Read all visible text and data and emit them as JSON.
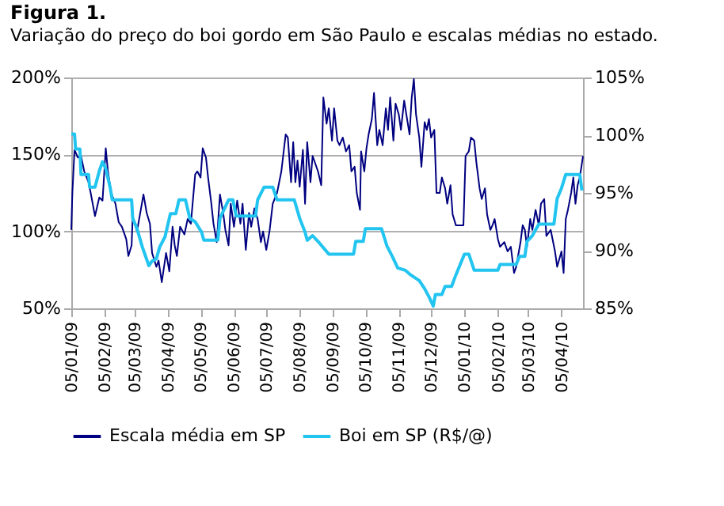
{
  "chart_data": {
    "type": "line",
    "title": "Figura 1.",
    "subtitle": "Variação do preço do boi gordo em São Paulo e escalas médias no estado.",
    "xlim": [
      "2009-01-05",
      "2010-04-25"
    ],
    "xticks": [
      {
        "value": "2009-01-05",
        "label": "05/01/09"
      },
      {
        "value": "2009-02-05",
        "label": "05/02/09"
      },
      {
        "value": "2009-03-05",
        "label": "05/03/09"
      },
      {
        "value": "2009-04-05",
        "label": "05/04/09"
      },
      {
        "value": "2009-05-05",
        "label": "05/05/09"
      },
      {
        "value": "2009-06-05",
        "label": "05/06/09"
      },
      {
        "value": "2009-07-05",
        "label": "05/07/09"
      },
      {
        "value": "2009-08-05",
        "label": "05/08/09"
      },
      {
        "value": "2009-09-05",
        "label": "05/09/09"
      },
      {
        "value": "2009-10-05",
        "label": "05/10/09"
      },
      {
        "value": "2009-11-05",
        "label": "05/11/09"
      },
      {
        "value": "2009-12-05",
        "label": "05/12/09"
      },
      {
        "value": "2010-01-05",
        "label": "05/01/10"
      },
      {
        "value": "2010-02-05",
        "label": "05/02/10"
      },
      {
        "value": "2010-03-05",
        "label": "05/03/10"
      },
      {
        "value": "2010-04-05",
        "label": "05/04/10"
      }
    ],
    "ylim": [
      50,
      200
    ],
    "yticks": [
      {
        "value": 50,
        "label": "50%"
      },
      {
        "value": 100,
        "label": "100%"
      },
      {
        "value": 150,
        "label": "150%"
      },
      {
        "value": 200,
        "label": "200%"
      }
    ],
    "y2lim": [
      85,
      105
    ],
    "y2ticks": [
      {
        "value": 85,
        "label": "85%"
      },
      {
        "value": 90,
        "label": "90%"
      },
      {
        "value": 95,
        "label": "95%"
      },
      {
        "value": 100,
        "label": "100%"
      },
      {
        "value": 105,
        "label": "105%"
      }
    ],
    "grid": "y",
    "legend": "bottom",
    "marker": "none",
    "line_style": "solid",
    "series": [
      {
        "name": "Escala média em SP",
        "color": "#000080",
        "x": [
          "2009-01-05",
          "2009-01-06",
          "2009-01-08",
          "2009-01-11",
          "2009-01-14",
          "2009-01-17",
          "2009-01-21",
          "2009-01-23",
          "2009-01-27",
          "2009-01-31",
          "2009-02-03",
          "2009-02-06",
          "2009-02-08",
          "2009-02-11",
          "2009-02-15",
          "2009-02-18",
          "2009-02-21",
          "2009-02-25",
          "2009-02-27",
          "2009-03-02",
          "2009-03-03",
          "2009-03-07",
          "2009-03-10",
          "2009-03-13",
          "2009-03-16",
          "2009-03-19",
          "2009-03-21",
          "2009-03-25",
          "2009-03-27",
          "2009-03-30",
          "2009-04-03",
          "2009-04-06",
          "2009-04-09",
          "2009-04-11",
          "2009-04-13",
          "2009-04-16",
          "2009-04-20",
          "2009-04-23",
          "2009-04-26",
          "2009-04-30",
          "2009-05-02",
          "2009-05-05",
          "2009-05-07",
          "2009-05-10",
          "2009-05-12",
          "2009-05-15",
          "2009-05-17",
          "2009-05-20",
          "2009-05-23",
          "2009-05-26",
          "2009-05-28",
          "2009-05-31",
          "2009-06-02",
          "2009-06-05",
          "2009-06-08",
          "2009-06-11",
          "2009-06-13",
          "2009-06-16",
          "2009-06-19",
          "2009-06-21",
          "2009-06-24",
          "2009-06-27",
          "2009-06-30",
          "2009-07-02",
          "2009-07-05",
          "2009-07-08",
          "2009-07-11",
          "2009-07-15",
          "2009-07-19",
          "2009-07-23",
          "2009-07-25",
          "2009-07-28",
          "2009-07-30",
          "2009-08-01",
          "2009-08-03",
          "2009-08-05",
          "2009-08-08",
          "2009-08-10",
          "2009-08-12",
          "2009-08-15",
          "2009-08-17",
          "2009-08-22",
          "2009-08-25",
          "2009-08-27",
          "2009-08-30",
          "2009-09-01",
          "2009-09-04",
          "2009-09-06",
          "2009-09-09",
          "2009-09-11",
          "2009-09-14",
          "2009-09-17",
          "2009-09-20",
          "2009-09-22",
          "2009-09-25",
          "2009-09-27",
          "2009-09-30",
          "2009-10-01",
          "2009-10-04",
          "2009-10-06",
          "2009-10-08",
          "2009-10-11",
          "2009-10-13",
          "2009-10-16",
          "2009-10-18",
          "2009-10-21",
          "2009-10-24",
          "2009-10-26",
          "2009-10-28",
          "2009-10-31",
          "2009-11-02",
          "2009-11-05",
          "2009-11-07",
          "2009-11-10",
          "2009-11-12",
          "2009-11-15",
          "2009-11-17",
          "2009-11-19",
          "2009-11-21",
          "2009-11-24",
          "2009-11-26",
          "2009-11-29",
          "2009-12-01",
          "2009-12-03",
          "2009-12-05",
          "2009-12-08",
          "2009-12-10",
          "2009-12-13",
          "2009-12-15",
          "2009-12-18",
          "2009-12-20",
          "2009-12-23",
          "2009-12-25",
          "2009-12-28",
          "2010-01-04",
          "2010-01-06",
          "2010-01-09",
          "2010-01-11",
          "2010-01-14",
          "2010-01-16",
          "2010-01-19",
          "2010-01-21",
          "2010-01-24",
          "2010-01-26",
          "2010-01-29",
          "2010-01-31",
          "2010-02-02",
          "2010-02-05",
          "2010-02-07",
          "2010-02-11",
          "2010-02-14",
          "2010-02-17",
          "2010-02-20",
          "2010-02-22",
          "2010-02-26",
          "2010-02-28",
          "2010-03-02",
          "2010-03-04",
          "2010-03-07",
          "2010-03-09",
          "2010-03-12",
          "2010-03-15",
          "2010-03-17",
          "2010-03-20",
          "2010-03-22",
          "2010-03-26",
          "2010-03-30",
          "2010-04-01",
          "2010-04-05",
          "2010-04-07",
          "2010-04-09",
          "2010-04-11",
          "2010-04-14",
          "2010-04-16",
          "2010-04-18",
          "2010-04-20",
          "2010-04-22",
          "2010-04-25"
        ],
        "values": [
          101,
          125,
          153,
          148,
          149,
          139,
          132,
          125,
          110,
          122,
          120,
          154,
          139,
          125,
          118,
          106,
          103,
          95,
          84,
          91,
          110,
          100,
          112,
          124,
          112,
          105,
          86,
          77,
          81,
          67,
          86,
          74,
          103,
          91,
          84,
          103,
          98,
          108,
          105,
          137,
          139,
          135,
          154,
          148,
          135,
          118,
          105,
          93,
          124,
          112,
          101,
          91,
          118,
          103,
          120,
          105,
          118,
          88,
          112,
          103,
          115,
          108,
          93,
          100,
          88,
          100,
          118,
          125,
          139,
          163,
          161,
          132,
          158,
          132,
          146,
          129,
          153,
          118,
          158,
          132,
          149,
          139,
          130,
          187,
          170,
          180,
          159,
          180,
          159,
          156,
          161,
          152,
          156,
          139,
          142,
          125,
          114,
          152,
          139,
          154,
          163,
          173,
          190,
          156,
          166,
          156,
          180,
          166,
          187,
          159,
          183,
          176,
          166,
          185,
          176,
          163,
          187,
          199,
          176,
          161,
          142,
          171,
          166,
          173,
          161,
          166,
          125,
          125,
          135,
          128,
          118,
          130,
          111,
          104,
          104,
          149,
          152,
          161,
          159,
          145,
          128,
          121,
          128,
          111,
          101,
          104,
          108,
          95,
          90,
          93,
          87,
          90,
          73,
          77,
          93,
          104,
          101,
          90,
          108,
          101,
          114,
          104,
          118,
          121,
          97,
          101,
          87,
          77,
          87,
          73,
          108,
          114,
          125,
          135,
          118,
          130,
          135,
          149
        ]
      },
      {
        "name": "Boi em SP (R$/@)",
        "color": "#22c4f0",
        "axis": "y2",
        "x": [
          "2009-01-05",
          "2009-01-08",
          "2009-01-09",
          "2009-01-13",
          "2009-01-14",
          "2009-01-21",
          "2009-01-22",
          "2009-01-27",
          "2009-01-31",
          "2009-02-03",
          "2009-02-06",
          "2009-02-10",
          "2009-02-12",
          "2009-03-02",
          "2009-03-03",
          "2009-03-07",
          "2009-03-12",
          "2009-03-18",
          "2009-03-21",
          "2009-03-25",
          "2009-03-28",
          "2009-04-02",
          "2009-04-07",
          "2009-04-12",
          "2009-04-15",
          "2009-04-21",
          "2009-04-25",
          "2009-04-30",
          "2009-05-06",
          "2009-05-08",
          "2009-05-21",
          "2009-05-23",
          "2009-05-31",
          "2009-06-04",
          "2009-06-07",
          "2009-06-25",
          "2009-06-27",
          "2009-07-03",
          "2009-07-11",
          "2009-07-15",
          "2009-07-31",
          "2009-08-05",
          "2009-08-10",
          "2009-08-12",
          "2009-08-17",
          "2009-08-22",
          "2009-09-01",
          "2009-09-24",
          "2009-09-26",
          "2009-10-03",
          "2009-10-05",
          "2009-10-20",
          "2009-10-25",
          "2009-10-30",
          "2009-11-04",
          "2009-11-11",
          "2009-11-16",
          "2009-11-24",
          "2009-11-29",
          "2009-12-03",
          "2009-12-07",
          "2009-12-09",
          "2009-12-15",
          "2009-12-18",
          "2009-12-24",
          "2009-12-28",
          "2010-01-01",
          "2010-01-05",
          "2010-01-09",
          "2010-01-14",
          "2010-02-05",
          "2010-02-07",
          "2010-02-22",
          "2010-02-25",
          "2010-03-02",
          "2010-03-04",
          "2010-03-09",
          "2010-03-15",
          "2010-03-29",
          "2010-04-01",
          "2010-04-05",
          "2010-04-09",
          "2010-04-22",
          "2010-04-24"
        ],
        "values": [
          100.1,
          100.1,
          98.8,
          98.8,
          96.6,
          96.6,
          95.5,
          95.5,
          96.9,
          97.7,
          97.1,
          95.5,
          94.4,
          94.4,
          92.8,
          91.9,
          90.3,
          88.7,
          89.1,
          89.3,
          90.3,
          91.2,
          93.2,
          93.2,
          94.4,
          94.4,
          92.8,
          92.5,
          91.6,
          90.9,
          90.9,
          92.8,
          94.4,
          94.4,
          93.0,
          93.0,
          94.4,
          95.5,
          95.5,
          94.4,
          94.4,
          92.8,
          91.6,
          90.9,
          91.3,
          90.8,
          89.7,
          89.7,
          90.8,
          90.8,
          91.9,
          91.9,
          90.4,
          89.5,
          88.5,
          88.3,
          87.9,
          87.4,
          86.7,
          86.0,
          85.2,
          86.2,
          86.2,
          86.9,
          86.9,
          87.9,
          88.8,
          89.7,
          89.7,
          88.3,
          88.3,
          88.8,
          88.8,
          89.5,
          89.5,
          90.8,
          91.3,
          92.3,
          92.3,
          94.5,
          95.4,
          96.6,
          96.6,
          95.2
        ]
      }
    ]
  }
}
